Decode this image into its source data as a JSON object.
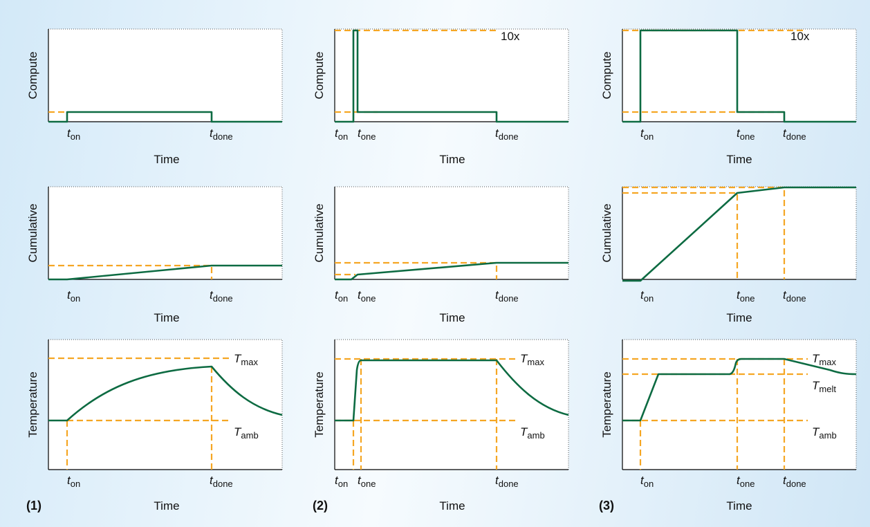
{
  "colors": {
    "curve": "#0d6b42",
    "guide": "#f5a623",
    "background": "#d6ebf8"
  },
  "scenarios": [
    {
      "label": "(1)",
      "compute": {
        "ylabel": "Compute",
        "xlabel": "Time",
        "ticks": [
          {
            "t": "t",
            "s": "on"
          },
          {
            "t": "t",
            "s": "done"
          }
        ],
        "annotation": ""
      },
      "cumulative": {
        "ylabel": "Cumulative",
        "xlabel": "Time",
        "ticks": [
          {
            "t": "t",
            "s": "on"
          },
          {
            "t": "t",
            "s": "done"
          }
        ]
      },
      "temperature": {
        "ylabel": "Temperature",
        "xlabel": "Time",
        "ticks": [
          {
            "t": "t",
            "s": "on"
          },
          {
            "t": "t",
            "s": "done"
          }
        ],
        "levels": [
          {
            "t": "T",
            "s": "max"
          },
          {
            "t": "T",
            "s": "amb"
          }
        ]
      }
    },
    {
      "label": "(2)",
      "compute": {
        "ylabel": "Compute",
        "xlabel": "Time",
        "ticks": [
          {
            "t": "t",
            "s": "on"
          },
          {
            "t": "t",
            "s": "one"
          },
          {
            "t": "t",
            "s": "done"
          }
        ],
        "annotation": "10x"
      },
      "cumulative": {
        "ylabel": "Cumulative",
        "xlabel": "Time",
        "ticks": [
          {
            "t": "t",
            "s": "on"
          },
          {
            "t": "t",
            "s": "one"
          },
          {
            "t": "t",
            "s": "done"
          }
        ]
      },
      "temperature": {
        "ylabel": "Temperature",
        "xlabel": "Time",
        "ticks": [
          {
            "t": "t",
            "s": "on"
          },
          {
            "t": "t",
            "s": "one"
          },
          {
            "t": "t",
            "s": "done"
          }
        ],
        "levels": [
          {
            "t": "T",
            "s": "max"
          },
          {
            "t": "T",
            "s": "amb"
          }
        ]
      }
    },
    {
      "label": "(3)",
      "compute": {
        "ylabel": "Compute",
        "xlabel": "Time",
        "ticks": [
          {
            "t": "t",
            "s": "on"
          },
          {
            "t": "t",
            "s": "one"
          },
          {
            "t": "t",
            "s": "done"
          }
        ],
        "annotation": "10x"
      },
      "cumulative": {
        "ylabel": "Cumulative",
        "xlabel": "Time",
        "ticks": [
          {
            "t": "t",
            "s": "on"
          },
          {
            "t": "t",
            "s": "one"
          },
          {
            "t": "t",
            "s": "done"
          }
        ]
      },
      "temperature": {
        "ylabel": "Temperature",
        "xlabel": "Time",
        "ticks": [
          {
            "t": "t",
            "s": "on"
          },
          {
            "t": "t",
            "s": "one"
          },
          {
            "t": "t",
            "s": "done"
          }
        ],
        "levels": [
          {
            "t": "T",
            "s": "max"
          },
          {
            "t": "T",
            "s": "melt"
          },
          {
            "t": "T",
            "s": "amb"
          }
        ]
      }
    }
  ]
}
